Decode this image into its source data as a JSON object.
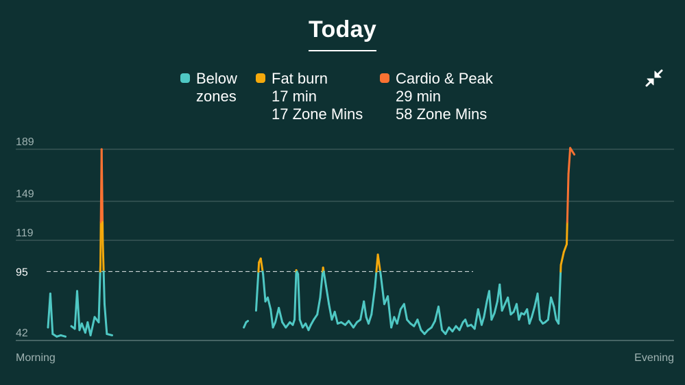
{
  "title": "Today",
  "legend": [
    {
      "lines": [
        "Below",
        "zones"
      ],
      "color": "#4fc8c4"
    },
    {
      "lines": [
        "Fat burn",
        "17 min",
        "17 Zone Mins"
      ],
      "color": "#f5a90c"
    },
    {
      "lines": [
        "Cardio & Peak",
        "29 min",
        "58 Zone Mins"
      ],
      "color": "#fb7232"
    }
  ],
  "icons": {
    "collapse": "collapse-arrows-icon"
  },
  "chart_data": {
    "type": "line",
    "ylim": [
      42,
      190
    ],
    "yticks": [
      42,
      119,
      149,
      189
    ],
    "reference_line": {
      "value": 95,
      "label": "95"
    },
    "x_labels": {
      "start": "Morning",
      "end": "Evening"
    },
    "zone_thresholds": {
      "fat_burn": 95,
      "cardio": 133
    },
    "series": [
      {
        "colors": {
          "below": "#4fc8c4",
          "fat_burn": "#f5a90c",
          "cardio": "#fb7232"
        },
        "values": [
          [
            0.0,
            52
          ],
          [
            0.004,
            78
          ],
          [
            0.008,
            47
          ],
          [
            0.015,
            45
          ],
          [
            0.022,
            46
          ],
          [
            0.03,
            45
          ],
          [
            0.04,
            53
          ],
          [
            0.046,
            51
          ],
          [
            0.05,
            80
          ],
          [
            0.054,
            50
          ],
          [
            0.058,
            55
          ],
          [
            0.064,
            48
          ],
          [
            0.068,
            56
          ],
          [
            0.073,
            46
          ],
          [
            0.08,
            60
          ],
          [
            0.087,
            56
          ],
          [
            0.09,
            100
          ],
          [
            0.092,
            189
          ],
          [
            0.094,
            118
          ],
          [
            0.097,
            70
          ],
          [
            0.101,
            47
          ],
          [
            0.11,
            46
          ],
          [
            0.13,
            44
          ],
          [
            0.16,
            43
          ],
          [
            0.2,
            44
          ],
          [
            0.23,
            44
          ],
          [
            0.26,
            43
          ],
          [
            0.28,
            42
          ],
          [
            0.3,
            44
          ],
          [
            0.32,
            45
          ],
          [
            0.336,
            52
          ],
          [
            0.34,
            56
          ],
          [
            0.343,
            57
          ],
          [
            0.357,
            65
          ],
          [
            0.362,
            102
          ],
          [
            0.365,
            105
          ],
          [
            0.369,
            93
          ],
          [
            0.373,
            72
          ],
          [
            0.377,
            75
          ],
          [
            0.382,
            66
          ],
          [
            0.386,
            52
          ],
          [
            0.39,
            56
          ],
          [
            0.396,
            67
          ],
          [
            0.402,
            56
          ],
          [
            0.408,
            52
          ],
          [
            0.415,
            56
          ],
          [
            0.42,
            54
          ],
          [
            0.423,
            58
          ],
          [
            0.426,
            96
          ],
          [
            0.429,
            93
          ],
          [
            0.432,
            58
          ],
          [
            0.437,
            52
          ],
          [
            0.442,
            55
          ],
          [
            0.447,
            50
          ],
          [
            0.451,
            54
          ],
          [
            0.456,
            58
          ],
          [
            0.462,
            62
          ],
          [
            0.467,
            75
          ],
          [
            0.472,
            98
          ],
          [
            0.477,
            84
          ],
          [
            0.482,
            70
          ],
          [
            0.487,
            58
          ],
          [
            0.492,
            64
          ],
          [
            0.497,
            55
          ],
          [
            0.503,
            56
          ],
          [
            0.51,
            54
          ],
          [
            0.516,
            57
          ],
          [
            0.524,
            52
          ],
          [
            0.53,
            56
          ],
          [
            0.536,
            58
          ],
          [
            0.542,
            72
          ],
          [
            0.546,
            60
          ],
          [
            0.55,
            55
          ],
          [
            0.555,
            62
          ],
          [
            0.561,
            83
          ],
          [
            0.566,
            108
          ],
          [
            0.571,
            92
          ],
          [
            0.577,
            70
          ],
          [
            0.583,
            76
          ],
          [
            0.589,
            52
          ],
          [
            0.594,
            60
          ],
          [
            0.599,
            55
          ],
          [
            0.605,
            66
          ],
          [
            0.611,
            70
          ],
          [
            0.616,
            58
          ],
          [
            0.622,
            55
          ],
          [
            0.628,
            53
          ],
          [
            0.634,
            58
          ],
          [
            0.64,
            50
          ],
          [
            0.646,
            47
          ],
          [
            0.652,
            50
          ],
          [
            0.658,
            52
          ],
          [
            0.664,
            57
          ],
          [
            0.67,
            68
          ],
          [
            0.676,
            50
          ],
          [
            0.682,
            47
          ],
          [
            0.688,
            52
          ],
          [
            0.694,
            49
          ],
          [
            0.7,
            53
          ],
          [
            0.706,
            50
          ],
          [
            0.712,
            56
          ],
          [
            0.716,
            58
          ],
          [
            0.72,
            53
          ],
          [
            0.726,
            54
          ],
          [
            0.732,
            51
          ],
          [
            0.738,
            66
          ],
          [
            0.744,
            54
          ],
          [
            0.748,
            60
          ],
          [
            0.753,
            72
          ],
          [
            0.757,
            80
          ],
          [
            0.761,
            58
          ],
          [
            0.766,
            63
          ],
          [
            0.771,
            72
          ],
          [
            0.775,
            85
          ],
          [
            0.779,
            65
          ],
          [
            0.784,
            70
          ],
          [
            0.789,
            75
          ],
          [
            0.794,
            62
          ],
          [
            0.799,
            64
          ],
          [
            0.804,
            70
          ],
          [
            0.808,
            58
          ],
          [
            0.812,
            63
          ],
          [
            0.817,
            62
          ],
          [
            0.822,
            66
          ],
          [
            0.826,
            55
          ],
          [
            0.83,
            60
          ],
          [
            0.835,
            68
          ],
          [
            0.84,
            78
          ],
          [
            0.844,
            58
          ],
          [
            0.849,
            55
          ],
          [
            0.853,
            56
          ],
          [
            0.858,
            58
          ],
          [
            0.863,
            75
          ],
          [
            0.868,
            68
          ],
          [
            0.872,
            58
          ],
          [
            0.876,
            55
          ],
          [
            0.88,
            100
          ],
          [
            0.885,
            110
          ],
          [
            0.89,
            116
          ],
          [
            0.893,
            170
          ],
          [
            0.896,
            190
          ],
          [
            0.903,
            185
          ]
        ]
      }
    ]
  }
}
